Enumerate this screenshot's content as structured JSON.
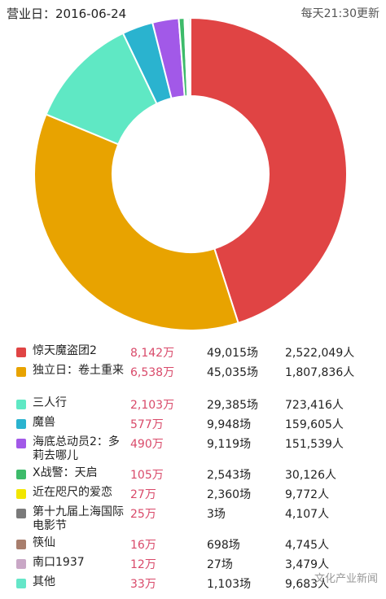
{
  "header": {
    "business_day": "营业日：2016-06-24",
    "update_note": "每天21:30更新"
  },
  "chart_data": {
    "type": "pie",
    "donut": true,
    "categories": [
      "惊天魔盗团2",
      "独立日：卷土重来",
      "三人行",
      "魔兽",
      "海底总动员2：多莉去哪儿",
      "X战警：天启",
      "近在咫尺的爱恋",
      "第十九届上海国际电影节",
      "筷仙",
      "南口1937",
      "其他"
    ],
    "values": [
      8142,
      6538,
      2103,
      577,
      490,
      105,
      27,
      25,
      16,
      12,
      33
    ],
    "colors": [
      "#e04444",
      "#e8a300",
      "#5fe8c4",
      "#2ab3cf",
      "#a259e8",
      "#3dbb6a",
      "#f2e600",
      "#7a7a7a",
      "#a87e6d",
      "#c9a7c6",
      "#65e6c8"
    ]
  },
  "legend": [
    {
      "name": "惊天魔盗团2",
      "box": "8,142万",
      "shows": "49,015场",
      "admissions": "2,522,049人"
    },
    {
      "name": "独立日：卷土重来",
      "box": "6,538万",
      "shows": "45,035场",
      "admissions": "1,807,836人"
    },
    {
      "name": "三人行",
      "box": "2,103万",
      "shows": "29,385场",
      "admissions": "723,416人"
    },
    {
      "name": "魔兽",
      "box": "577万",
      "shows": "9,948场",
      "admissions": "159,605人"
    },
    {
      "name": "海底总动员2：多莉去哪儿",
      "box": "490万",
      "shows": "9,119场",
      "admissions": "151,539人"
    },
    {
      "name": "X战警：天启",
      "box": "105万",
      "shows": "2,543场",
      "admissions": "30,126人"
    },
    {
      "name": "近在咫尺的爱恋",
      "box": "27万",
      "shows": "2,360场",
      "admissions": "9,772人"
    },
    {
      "name": "第十九届上海国际电影节",
      "box": "25万",
      "shows": "3场",
      "admissions": "4,107人"
    },
    {
      "name": "筷仙",
      "box": "16万",
      "shows": "698场",
      "admissions": "4,745人"
    },
    {
      "name": "南口1937",
      "box": "12万",
      "shows": "27场",
      "admissions": "3,479人"
    },
    {
      "name": "其他",
      "box": "33万",
      "shows": "1,103场",
      "admissions": "9,683人"
    }
  ],
  "watermark": "文化产业新闻"
}
